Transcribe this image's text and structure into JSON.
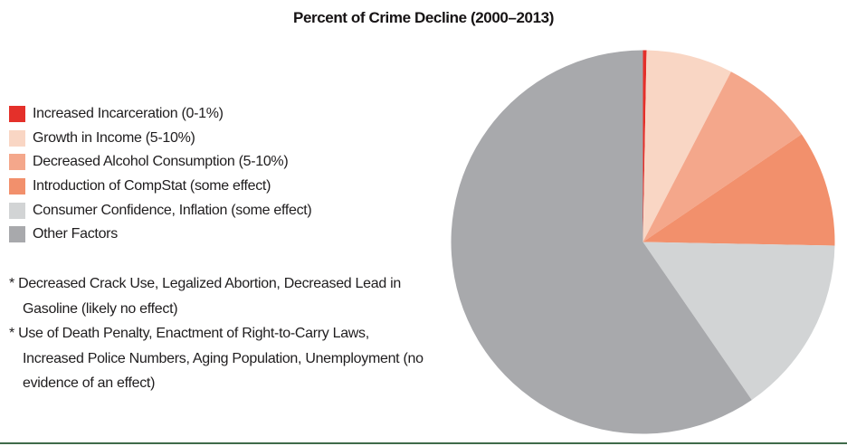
{
  "title": "Percent of Crime Decline (2000–2013)",
  "chart_data": {
    "type": "pie",
    "title": "Percent of Crime Decline (2000–2013)",
    "legend_position": "left",
    "start_angle_deg": 0,
    "direction": "clockwise",
    "slices": [
      {
        "label": "Increased Incarceration",
        "legend_label": "Increased Incarceration (0-1%)",
        "value_pct": 0.3,
        "sweep_deg": 1.1,
        "color": "#e4302a"
      },
      {
        "label": "Growth in Income",
        "legend_label": "Growth in Income (5-10%)",
        "value_pct": 7.3,
        "sweep_deg": 26.3,
        "color": "#f9d6c4"
      },
      {
        "label": "Decreased Alcohol Consumption",
        "legend_label": "Decreased Alcohol Consumption (5-10%)",
        "value_pct": 7.9,
        "sweep_deg": 28.4,
        "color": "#f4a78b"
      },
      {
        "label": "Introduction of CompStat",
        "legend_label": "Introduction of CompStat (some effect)",
        "value_pct": 9.8,
        "sweep_deg": 35.3,
        "color": "#f2906c"
      },
      {
        "label": "Consumer Confidence, Inflation",
        "legend_label": "Consumer Confidence, Inflation (some effect)",
        "value_pct": 15.1,
        "sweep_deg": 54.4,
        "color": "#d2d4d5"
      },
      {
        "label": "Other Factors",
        "legend_label": "Other Factors",
        "value_pct": 59.6,
        "sweep_deg": 214.5,
        "color": "#a8a9ac"
      }
    ]
  },
  "footnotes": [
    {
      "text": "* Decreased Crack Use, Legalized Abortion, Decreased Lead in\nGasoline (likely no effect)"
    },
    {
      "text": "* Use of Death Penalty, Enactment of Right-to-Carry Laws,\nIncreased Police Numbers, Aging Population, Unemployment (no\nevidence of an effect)"
    }
  ],
  "colors": {
    "footer_rule": "#3f6b4a",
    "title_text": "#161314"
  }
}
